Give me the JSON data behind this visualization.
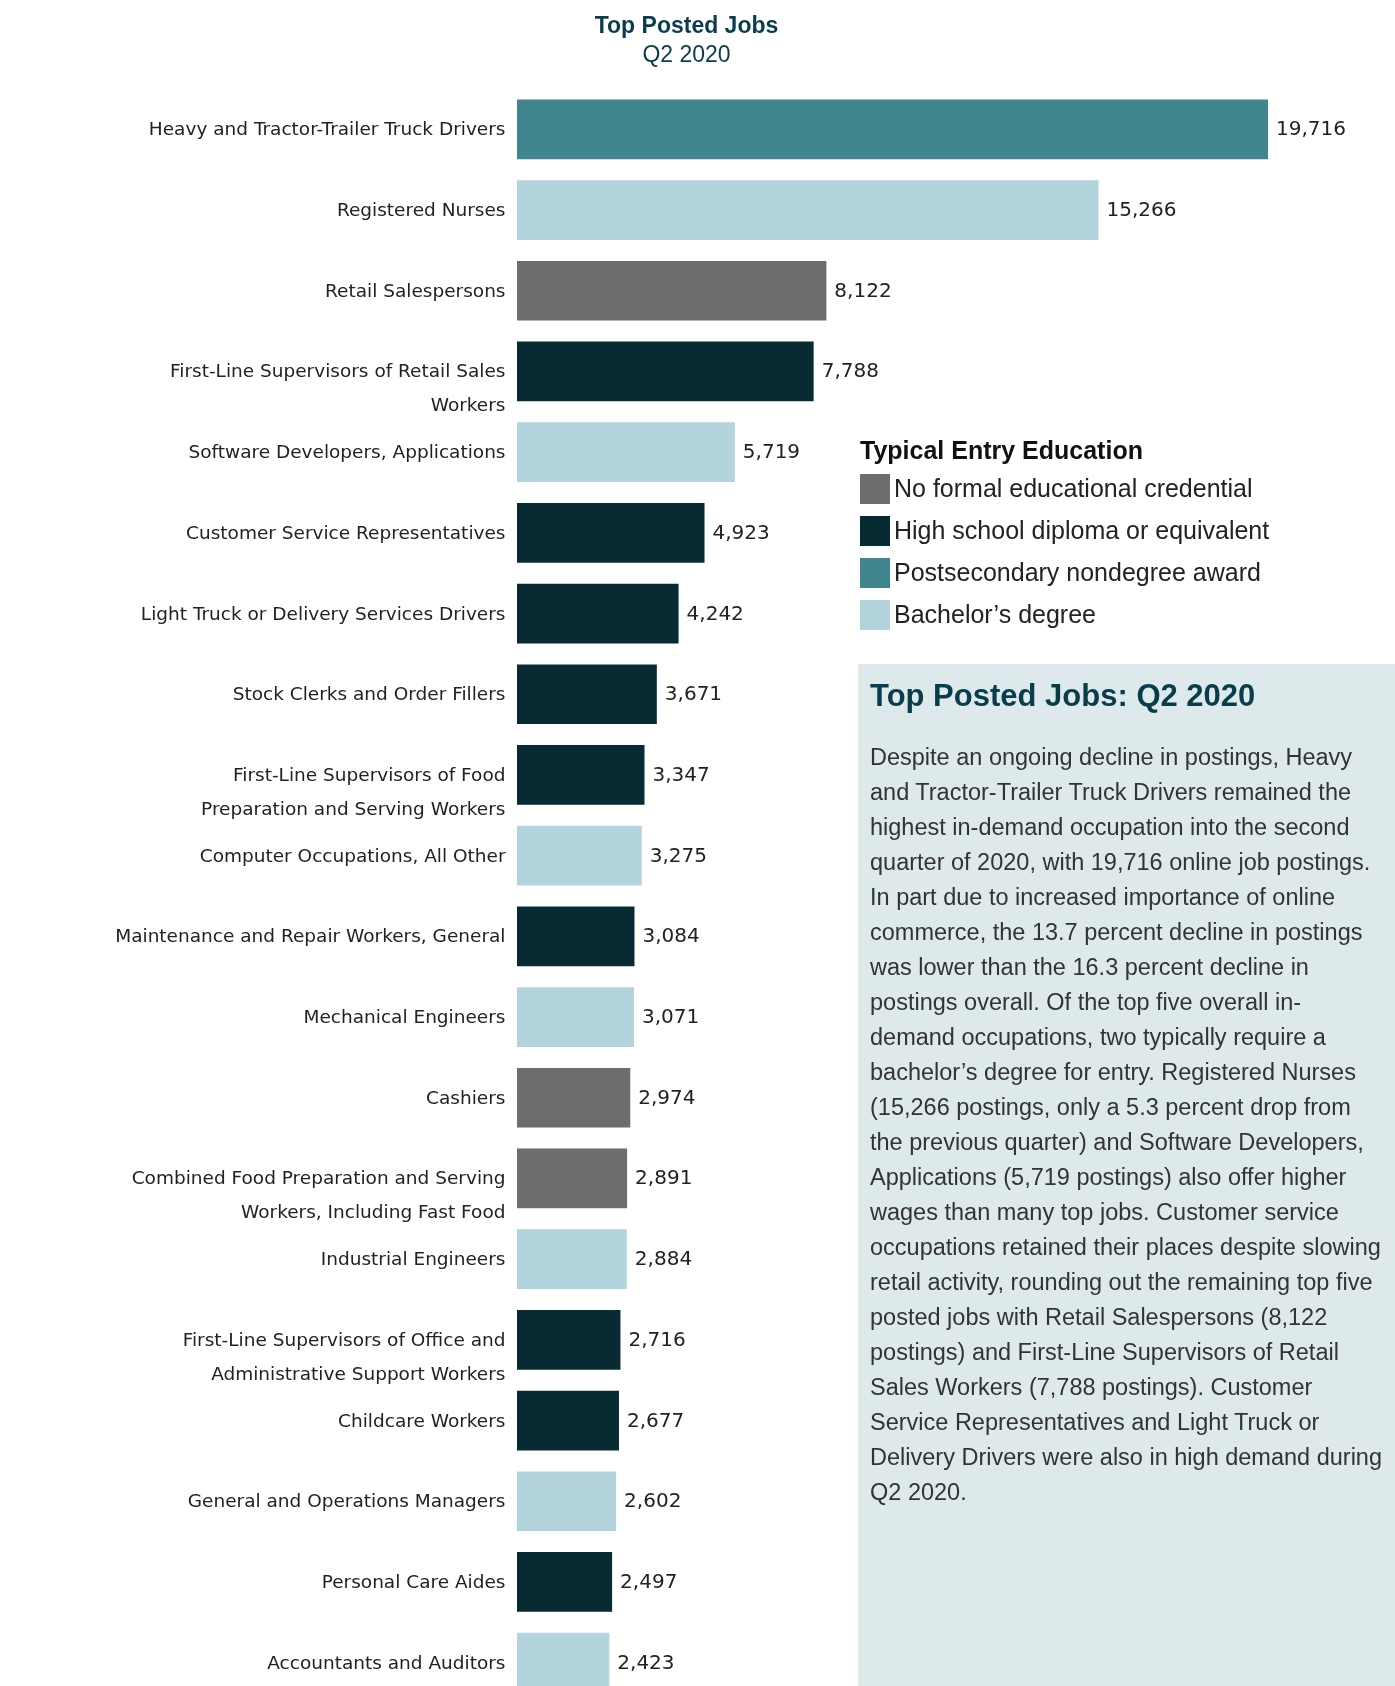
{
  "chart_data": [
    {
      "type": "bar",
      "orientation": "horizontal",
      "title": "Top Posted Jobs",
      "subtitle": "Q2 2020",
      "legend_title": "Typical Entry Education",
      "legend": "right",
      "categories": [
        "Heavy and Tractor-Trailer Truck Drivers",
        "Registered Nurses",
        "Retail Salespersons",
        "First-Line Supervisors of Retail Sales Workers",
        "Software Developers, Applications",
        "Customer Service Representatives",
        "Light Truck or Delivery Services Drivers",
        "Stock Clerks and Order Fillers",
        "First-Line Supervisors of Food Preparation and Serving Workers",
        "Computer Occupations, All Other",
        "Maintenance and Repair Workers, General",
        "Mechanical Engineers",
        "Cashiers",
        "Combined Food Preparation and Serving Workers, Including Fast Food",
        "Industrial Engineers",
        "First-Line Supervisors of Office and Administrative Support Workers",
        "Childcare Workers",
        "General and Operations Managers",
        "Personal Care Aides",
        "Accountants and Auditors"
      ],
      "series": [
        {
          "name": "No formal educational credential",
          "color": "#6d6d6d",
          "values": [
            null,
            null,
            8122,
            null,
            null,
            null,
            null,
            null,
            null,
            null,
            null,
            null,
            2974,
            2891,
            null,
            null,
            null,
            null,
            null,
            null
          ],
          "value_labels": [
            null,
            null,
            "8,122",
            null,
            null,
            null,
            null,
            null,
            null,
            null,
            null,
            null,
            "2,974",
            "2,891",
            null,
            null,
            null,
            null,
            null,
            null
          ]
        },
        {
          "name": "High school diploma or equivalent",
          "color": "#082a33",
          "values": [
            null,
            null,
            null,
            7788,
            null,
            4923,
            4242,
            3671,
            3347,
            null,
            3084,
            null,
            null,
            null,
            null,
            2716,
            2677,
            null,
            2497,
            null
          ],
          "value_labels": [
            null,
            null,
            null,
            "7,788",
            null,
            "4,923",
            "4,242",
            "3,671",
            "3,347",
            null,
            "3,084",
            null,
            null,
            null,
            null,
            "2,716",
            "2,677",
            null,
            "2,497",
            null
          ]
        },
        {
          "name": "Postsecondary nondegree award",
          "color": "#41858f",
          "values": [
            19716,
            null,
            null,
            null,
            null,
            null,
            null,
            null,
            null,
            null,
            null,
            null,
            null,
            null,
            null,
            null,
            null,
            null,
            null,
            null
          ],
          "value_labels": [
            "19,716",
            null,
            null,
            null,
            null,
            null,
            null,
            null,
            null,
            null,
            null,
            null,
            null,
            null,
            null,
            null,
            null,
            null,
            null,
            null
          ]
        },
        {
          "name": "Bachelor’s degree",
          "color": "#b3d4dc",
          "values": [
            null,
            15266,
            null,
            null,
            5719,
            null,
            null,
            null,
            null,
            3275,
            null,
            3071,
            null,
            null,
            2884,
            null,
            null,
            2602,
            null,
            2423
          ],
          "value_labels": [
            null,
            "15,266",
            null,
            null,
            "5,719",
            null,
            null,
            null,
            null,
            "3,275",
            null,
            "3,071",
            null,
            null,
            "2,884",
            null,
            null,
            "2,602",
            null,
            "2,423"
          ]
        }
      ]
    },
    {
      "type": "other",
      "title": "Top Posted Jobs: Q2 2020",
      "annotations": [
        "Despite an ongoing decline in postings, Heavy and Tractor-Trailer Truck Drivers remained the highest in-demand occupation into the second quarter of 2020, with 19,716 online job postings. In part due to increased importance of online commerce, the 13.7 percent decline in postings was lower than the 16.3 percent decline in postings overall. Of the top five overall in-demand occupations, two typically require a bachelor’s degree for entry. Registered Nurses (15,266 postings, only a 5.3 percent drop from the previous quarter) and Software Developers, Applications (5,719 postings) also offer higher wages than many top jobs. Customer service occupations retained their places despite slowing retail activity, rounding out the remaining top five posted jobs with Retail Salespersons (8,122 postings) and First-Line Supervisors of Retail Sales Workers (7,788 postings). Customer Service Representatives and Light Truck or Delivery Drivers were also in high demand during Q2 2020."
      ]
    }
  ]
}
